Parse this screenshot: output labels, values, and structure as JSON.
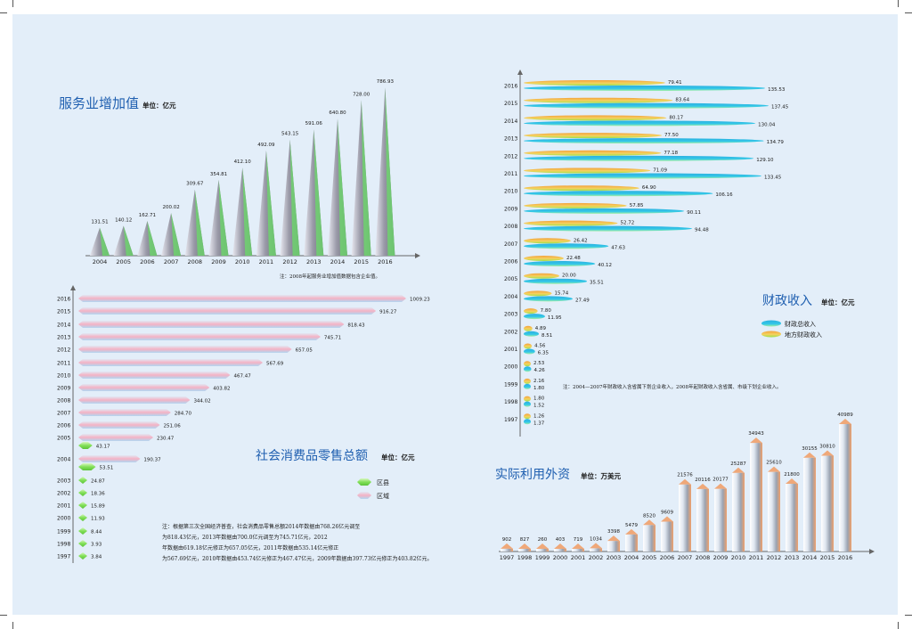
{
  "colors": {
    "paper": "#e3eef9",
    "title": "#1f5fb0",
    "text": "#1a1a1a",
    "axis": "#666666",
    "cone_main": "#9a9aa8",
    "cone_light": "#6fd46f",
    "retail_a": "#f4b2c4",
    "retail_b": "#b2d6f2",
    "retail_c": "#82e058",
    "fiscal_total": "#34c8e8",
    "fiscal_local": "#f2a23c",
    "fiscal_local_light": "#9ce04a",
    "fdi_light": "#dfe6f0",
    "fdi_dark": "#f0a06a"
  },
  "chart_data": [
    {
      "type": "bar",
      "title": "服务业增加值",
      "unit": "单位：亿元",
      "note": "注：2008年起服务业增加值数据包含企业值。",
      "categories": [
        "2004",
        "2005",
        "2006",
        "2007",
        "2008",
        "2009",
        "2010",
        "2011",
        "2012",
        "2013",
        "2014",
        "2015",
        "2016"
      ],
      "values": [
        131.51,
        140.12,
        162.71,
        200.02,
        309.67,
        354.81,
        412.1,
        492.09,
        543.15,
        591.06,
        640.8,
        728.0,
        786.93
      ],
      "labels": [
        "131.51",
        "140.12",
        "162.71",
        "200.02",
        "309.67",
        "354.81",
        "412.10",
        "492.09",
        "543.15",
        "591.06",
        "640.80",
        "728.00",
        "786.93"
      ],
      "ylim": [
        0,
        800
      ]
    },
    {
      "type": "bar",
      "orientation": "horizontal",
      "title": "社会消费品零售总额",
      "unit": "单位：亿元",
      "note": "注：根据第三次全国经济普查，社会消费品零售总额2014年数据由768.26亿元调至为818.43亿元，2013年数据由700.0亿元调至为745.71亿元，2012年数据由619.18亿元修正为657.05亿元，2011年数据由535.14亿元修正为567.69亿元，2010年数据由453.74亿元修正为467.47亿元，2009年数据由397.73亿元修正为403.82亿元。",
      "legend": [
        "区县",
        "区域"
      ],
      "categories": [
        "2016",
        "2015",
        "2014",
        "2013",
        "2012",
        "2011",
        "2010",
        "2009",
        "2008",
        "2007",
        "2006",
        "2005",
        "2004",
        "2003",
        "2002",
        "2001",
        "2000",
        "1999",
        "1998",
        "1997"
      ],
      "values": [
        1009.23,
        916.27,
        818.43,
        745.71,
        657.05,
        567.69,
        467.47,
        403.82,
        344.02,
        284.7,
        251.06,
        230.47,
        190.37,
        24.87,
        18.36,
        15.89,
        11.93,
        8.44,
        3.93,
        3.84
      ],
      "labels": [
        "1009.23",
        "916.27",
        "818.43",
        "745.71",
        "657.05",
        "567.69",
        "467.47",
        "403.82",
        "344.02",
        "284.70",
        "251.06",
        "230.47",
        "190.37",
        "24.87",
        "18.36",
        "15.89",
        "11.93",
        "8.44",
        "3.93",
        "3.84"
      ],
      "extra_values": {
        "2005": 43.17,
        "2004": 53.51
      },
      "extra_labels": {
        "2005": "43.17",
        "2004": "53.51"
      }
    },
    {
      "type": "bar",
      "orientation": "horizontal",
      "title": "财政收入",
      "unit": "单位：亿元",
      "note": "注：2004—2007年财政收入含省属下划企业收入，2008年起财政收入含省属、市级下划企业收入。",
      "legend": [
        "财政总收入",
        "地方财政收入"
      ],
      "categories": [
        "2016",
        "2015",
        "2014",
        "2013",
        "2012",
        "2011",
        "2010",
        "2009",
        "2008",
        "2007",
        "2006",
        "2005",
        "2004",
        "2003",
        "2002",
        "2001",
        "2000",
        "1999",
        "1998",
        "1997"
      ],
      "series": [
        {
          "name": "地方财政收入",
          "values": [
            79.41,
            83.64,
            80.17,
            77.5,
            77.18,
            71.09,
            64.9,
            57.85,
            52.72,
            26.42,
            22.48,
            20.0,
            15.74,
            7.8,
            4.89,
            4.56,
            2.53,
            2.16,
            1.8,
            1.26
          ],
          "labels": [
            "79.41",
            "83.64",
            "80.17",
            "77.50",
            "77.18",
            "71.09",
            "64.90",
            "57.85",
            "52.72",
            "26.42",
            "22.48",
            "20.00",
            "15.74",
            "7.80",
            "4.89",
            "4.56",
            "2.53",
            "2.16",
            "1.80",
            "1.26"
          ]
        },
        {
          "name": "财政总收入",
          "values": [
            135.53,
            137.45,
            130.04,
            134.79,
            129.1,
            133.45,
            106.16,
            90.11,
            94.48,
            47.63,
            40.12,
            35.51,
            27.49,
            11.95,
            8.51,
            6.35,
            4.26,
            1.8,
            1.52,
            1.37
          ],
          "labels": [
            "135.53",
            "137.45",
            "130.04",
            "134.79",
            "129.10",
            "133.45",
            "106.16",
            "90.11",
            "94.48",
            "47.63",
            "40.12",
            "35.51",
            "27.49",
            "11.95",
            "8.51",
            "6.35",
            "4.26",
            "1.80",
            "1.52",
            "1.37"
          ]
        }
      ]
    },
    {
      "type": "bar",
      "title": "实际利用外资",
      "unit": "单位：万美元",
      "categories": [
        "1997",
        "1998",
        "1999",
        "2000",
        "2001",
        "2002",
        "2003",
        "2004",
        "2005",
        "2006",
        "2007",
        "2008",
        "2009",
        "2010",
        "2011",
        "2012",
        "2013",
        "2014",
        "2015",
        "2016"
      ],
      "values": [
        902,
        827,
        260,
        403,
        719,
        1034,
        3398,
        5479,
        8520,
        9609,
        21576,
        20116,
        20177,
        25287,
        34943,
        25610,
        21800,
        30155,
        30810,
        40989
      ],
      "labels": [
        "902",
        "827",
        "260",
        "403",
        "719",
        "1034",
        "3398",
        "5479",
        "8520",
        "9609",
        "21576",
        "20116",
        "20177",
        "25287",
        "34943",
        "25610",
        "21800",
        "30155",
        "30810",
        "40989"
      ],
      "ylim": [
        0,
        40989
      ]
    }
  ]
}
